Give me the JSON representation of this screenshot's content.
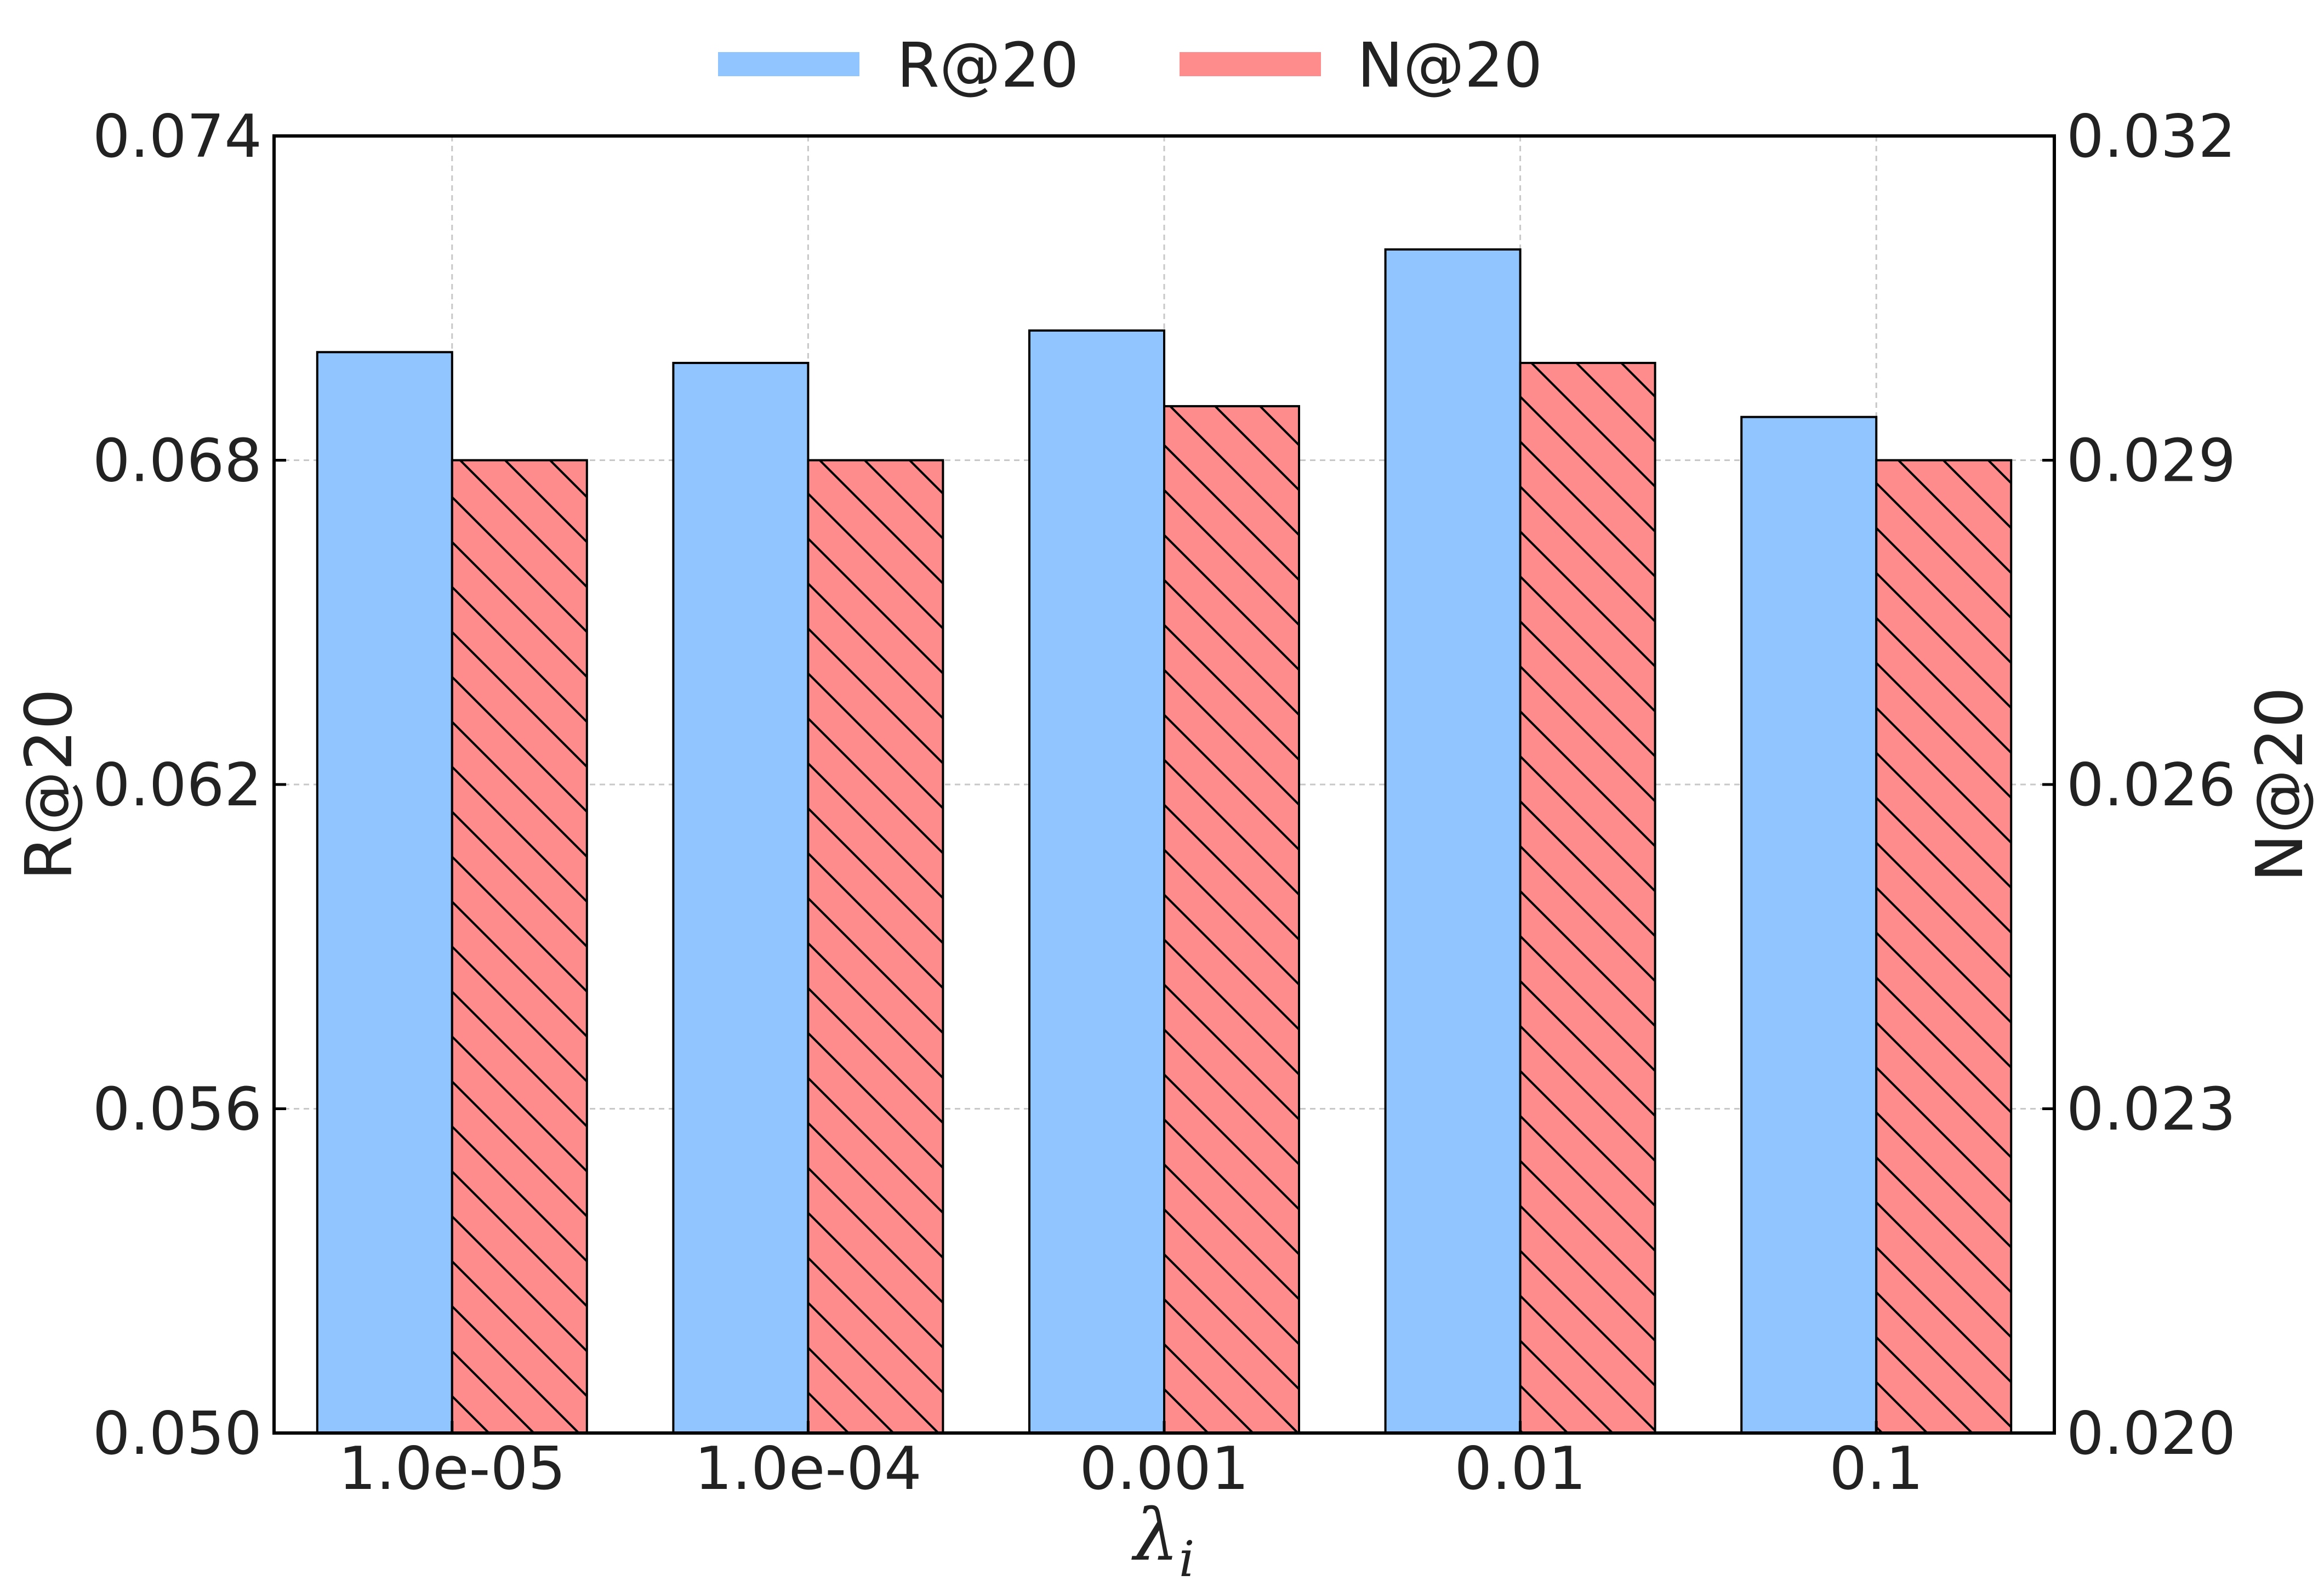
{
  "chart_data": {
    "type": "bar",
    "title": "",
    "xlabel": "λ",
    "xlabel_subscript": "i",
    "categories": [
      "1.0e-05",
      "1.0e-04",
      "0.001",
      "0.01",
      "0.1"
    ],
    "series": [
      {
        "name": "R@20",
        "axis": "left",
        "color": "#90c5ff",
        "hatch": "none",
        "values": [
          0.07,
          0.0698,
          0.0704,
          0.0719,
          0.0688
        ]
      },
      {
        "name": "N@20",
        "axis": "right",
        "color": "#ff8c8c",
        "hatch": "backslash",
        "values": [
          0.029,
          0.029,
          0.0295,
          0.0299,
          0.029
        ]
      }
    ],
    "ylabel_left": "R@20",
    "ylabel_right": "N@20",
    "ylim_left": [
      0.05,
      0.074
    ],
    "ylim_right": [
      0.02,
      0.032
    ],
    "yticks_left": [
      "0.050",
      "0.056",
      "0.062",
      "0.068",
      "0.074"
    ],
    "yticks_right": [
      "0.020",
      "0.023",
      "0.026",
      "0.029",
      "0.032"
    ],
    "grid": true,
    "legend_position": "top-center"
  }
}
